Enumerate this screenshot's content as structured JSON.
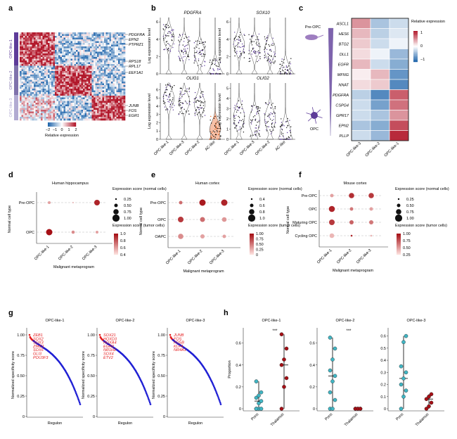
{
  "figure": {
    "panels": {
      "a": {
        "letter": "a",
        "genes_right": [
          "PDGFRA",
          "EPN2",
          "PTPRZ1",
          "RPS18",
          "RPL17",
          "EEF1A1",
          "JUNB",
          "FOS",
          "EGR1"
        ],
        "groups": [
          "OPC-like-1",
          "OPC-like-2",
          "OPC-like-3"
        ],
        "colorbar_ticks": [
          "−2",
          "−1",
          "0",
          "1",
          "2"
        ],
        "colorbar_label": "Relative expression"
      },
      "b": {
        "letter": "b",
        "ylabel": "Log expression level",
        "categories": [
          "OPC-like-1",
          "OPC-like-3",
          "OPC-like-2",
          "AC-like"
        ],
        "genes": [
          "PDGFRA",
          "SOX10",
          "OLIG1",
          "OLIG2"
        ],
        "yticks_top": [
          "0",
          "2",
          "4",
          "6"
        ],
        "yticks_ol1": [
          "0",
          "1",
          "2",
          "3",
          "4",
          "5",
          "6"
        ],
        "yticks_ol2": [
          "0",
          "1",
          "2",
          "3",
          "4",
          "5"
        ]
      },
      "c": {
        "letter": "c",
        "pre_label": "Pre-OPC",
        "opc_label": "OPC",
        "genes": [
          "ASCL1",
          "HES6",
          "BTG2",
          "DLL1",
          "EGFR",
          "MFNG",
          "NNAT",
          "PDGFRA",
          "CSPG4",
          "GPR17",
          "EPN2",
          "PLLP"
        ],
        "columns": [
          "OPC-like-3",
          "OPC-like-2",
          "OPC-like-1"
        ],
        "legend_title": "Relative expression",
        "legend_ticks": [
          "1",
          "0",
          "−1"
        ]
      },
      "d": {
        "letter": "d",
        "title": "Human hippocampus",
        "rows": [
          "Pre-OPC",
          "OPC"
        ],
        "xcats": [
          "OPC-like-1",
          "OPC-like-2",
          "OPC-like-3"
        ],
        "ylabel": "Normal cell type",
        "xlabel": "Malignant metaprogram",
        "size_title": "Expression score (normal cells)",
        "size_ticks": [
          "0.25",
          "0.50",
          "0.75",
          "1.00"
        ],
        "color_title": "Expression score (tumor cells)",
        "color_ticks": [
          "1.0",
          "0.8",
          "0.6",
          "0.4"
        ]
      },
      "e": {
        "letter": "e",
        "title": "Human cortex",
        "rows": [
          "Pre-OPC",
          "OPC",
          "OAPC"
        ],
        "xcats": [
          "OPC-like-1",
          "OPC-like-2",
          "OPC-like-3"
        ],
        "ylabel": "Normal cell type",
        "xlabel": "Malignant metaprogram",
        "size_title": "Expression score (normal cells)",
        "size_ticks": [
          "0.4",
          "0.6",
          "0.8",
          "1.0"
        ],
        "color_title": "Expression score (tumor cells)",
        "color_ticks": [
          "1.00",
          "0.75",
          "0.50",
          "0.25",
          "0"
        ]
      },
      "f": {
        "letter": "f",
        "title": "Mouse cortex",
        "rows": [
          "Pre-OPC",
          "OPC",
          "Maturing OPC",
          "Cycling OPC"
        ],
        "xcats": [
          "OPC-like-1",
          "OPC-like-2",
          "OPC-like-3"
        ],
        "ylabel": "Normal cell type",
        "xlabel": "Malignant metaprogram",
        "size_title": "Expression score (normal cells)",
        "size_ticks": [
          "0.25",
          "0.50",
          "0.75",
          "1.00"
        ],
        "color_title": "Expression score (tumor cells)",
        "color_ticks": [
          "1.00",
          "0.75",
          "0.50",
          "0.25"
        ]
      },
      "g": {
        "letter": "g",
        "ylabel": "Normalized specificity score",
        "xlabel": "Regulon",
        "yticks": [
          "1.00",
          "0.75",
          "0.50",
          "0.25",
          "0"
        ],
        "subplots": [
          {
            "title": "OPC-like-1",
            "labels": [
              "ZEB1",
              "SOX2",
              "SOX3",
              "ZMIZ1",
              "SOX6",
              "GLI3",
              "POU3F3"
            ]
          },
          {
            "title": "OPC-like-2",
            "labels": [
              "SOX21",
              "HOXD3",
              "HOXA4",
              "EGR2",
              "NR1H2",
              "SOX4",
              "ETV2"
            ]
          },
          {
            "title": "OPC-like-3",
            "labels": [
              "JUNB",
              "FOS",
              "FOSB",
              "KLF4",
              "NR4A1"
            ]
          }
        ]
      },
      "h": {
        "letter": "h",
        "ylabel": "Proportion",
        "subplots": [
          {
            "title": "OPC-like-1",
            "sig": "***",
            "yticks": [
              "0",
              "0.2",
              "0.4",
              "0.6"
            ]
          },
          {
            "title": "OPC-like-2",
            "sig": "***",
            "yticks": [
              "0",
              "0.2",
              "0.4",
              "0.6"
            ]
          },
          {
            "title": "OPC-like-3",
            "sig": "",
            "yticks": [
              "0",
              "0.1",
              "0.2",
              "0.3",
              "0.4",
              "0.5",
              "0.6"
            ]
          }
        ],
        "xcats": [
          "Pons",
          "Thalamus"
        ]
      }
    },
    "chart_data": [
      {
        "type": "heatmap",
        "panel": "c",
        "rows": [
          "ASCL1",
          "HES6",
          "BTG2",
          "DLL1",
          "EGFR",
          "MFNG",
          "NNAT",
          "PDGFRA",
          "CSPG4",
          "GPR17",
          "EPN2",
          "PLLP"
        ],
        "columns": [
          "OPC-like-3",
          "OPC-like-2",
          "OPC-like-1"
        ],
        "values": [
          [
            0.6,
            -0.5,
            -0.3
          ],
          [
            0.4,
            -0.4,
            -0.2
          ],
          [
            0.3,
            -0.3,
            -0.1
          ],
          [
            0.2,
            -0.1,
            -0.6
          ],
          [
            0.4,
            -0.3,
            -0.7
          ],
          [
            0.1,
            0.4,
            -0.9
          ],
          [
            0.2,
            0.3,
            -1.0
          ],
          [
            -0.4,
            -1.0,
            0.9
          ],
          [
            -0.3,
            -0.8,
            0.8
          ],
          [
            -0.3,
            -0.5,
            0.6
          ],
          [
            -0.5,
            -0.7,
            1.0
          ],
          [
            -0.3,
            -0.6,
            1.2
          ]
        ],
        "range": [
          -1.3,
          1.3
        ]
      },
      {
        "type": "scatter",
        "panel": "h",
        "series": [
          {
            "name": "OPC-like-1",
            "pons": [
              0.0,
              0.0,
              0.0,
              0.0,
              0.05,
              0.07,
              0.1,
              0.12,
              0.15,
              0.25
            ],
            "thalamus": [
              0.0,
              0.2,
              0.28,
              0.4,
              0.45,
              0.55,
              0.68
            ]
          },
          {
            "name": "OPC-like-2",
            "pons": [
              0.0,
              0.0,
              0.08,
              0.15,
              0.25,
              0.3,
              0.35,
              0.45,
              0.55,
              0.65
            ],
            "thalamus": [
              0.0,
              0.0,
              0.0,
              0.0,
              0.0,
              0.0
            ]
          },
          {
            "name": "OPC-like-3",
            "pons": [
              0.0,
              0.1,
              0.15,
              0.2,
              0.25,
              0.3,
              0.35,
              0.55,
              0.6
            ],
            "thalamus": [
              0.0,
              0.02,
              0.05,
              0.08,
              0.1,
              0.12
            ]
          }
        ]
      }
    ]
  }
}
